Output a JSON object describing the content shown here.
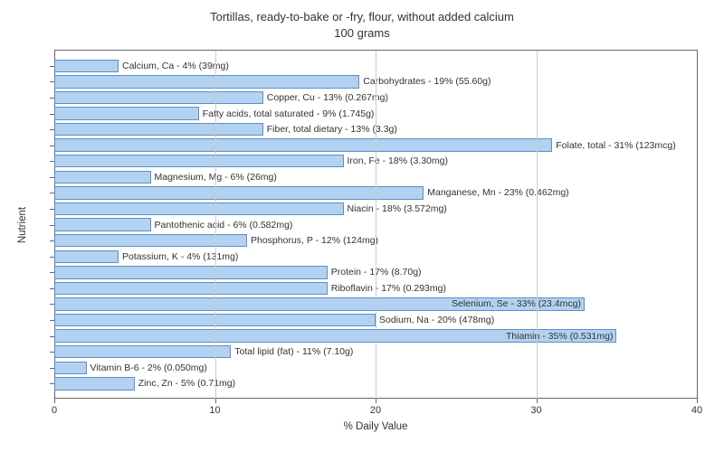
{
  "chart": {
    "type": "bar-horizontal",
    "title_line1": "Tortillas, ready-to-bake or -fry, flour, without added calcium",
    "title_line2": "100 grams",
    "title_fontsize": 13,
    "xlabel": "% Daily Value",
    "ylabel": "Nutrient",
    "label_fontsize": 11.5,
    "xlim": [
      0,
      40
    ],
    "xticks": [
      0,
      10,
      20,
      30,
      40
    ],
    "bar_color": "#b3d1f0",
    "bar_border_color": "#5b8fc7",
    "background_color": "#ffffff",
    "grid_color": "#cccccc",
    "bar_label_fontsize": 10.5,
    "nutrients": [
      {
        "label": "Calcium, Ca - 4% (39mg)",
        "value": 4
      },
      {
        "label": "Carbohydrates - 19% (55.60g)",
        "value": 19
      },
      {
        "label": "Copper, Cu - 13% (0.267mg)",
        "value": 13
      },
      {
        "label": "Fatty acids, total saturated - 9% (1.745g)",
        "value": 9
      },
      {
        "label": "Fiber, total dietary - 13% (3.3g)",
        "value": 13
      },
      {
        "label": "Folate, total - 31% (123mcg)",
        "value": 31
      },
      {
        "label": "Iron, Fe - 18% (3.30mg)",
        "value": 18
      },
      {
        "label": "Magnesium, Mg - 6% (26mg)",
        "value": 6
      },
      {
        "label": "Manganese, Mn - 23% (0.462mg)",
        "value": 23
      },
      {
        "label": "Niacin - 18% (3.572mg)",
        "value": 18
      },
      {
        "label": "Pantothenic acid - 6% (0.582mg)",
        "value": 6
      },
      {
        "label": "Phosphorus, P - 12% (124mg)",
        "value": 12
      },
      {
        "label": "Potassium, K - 4% (131mg)",
        "value": 4
      },
      {
        "label": "Protein - 17% (8.70g)",
        "value": 17
      },
      {
        "label": "Riboflavin - 17% (0.293mg)",
        "value": 17
      },
      {
        "label": "Selenium, Se - 33% (23.4mcg)",
        "value": 33
      },
      {
        "label": "Sodium, Na - 20% (478mg)",
        "value": 20
      },
      {
        "label": "Thiamin - 35% (0.531mg)",
        "value": 35
      },
      {
        "label": "Total lipid (fat) - 11% (7.10g)",
        "value": 11
      },
      {
        "label": "Vitamin B-6 - 2% (0.050mg)",
        "value": 2
      },
      {
        "label": "Zinc, Zn - 5% (0.71mg)",
        "value": 5
      }
    ]
  }
}
